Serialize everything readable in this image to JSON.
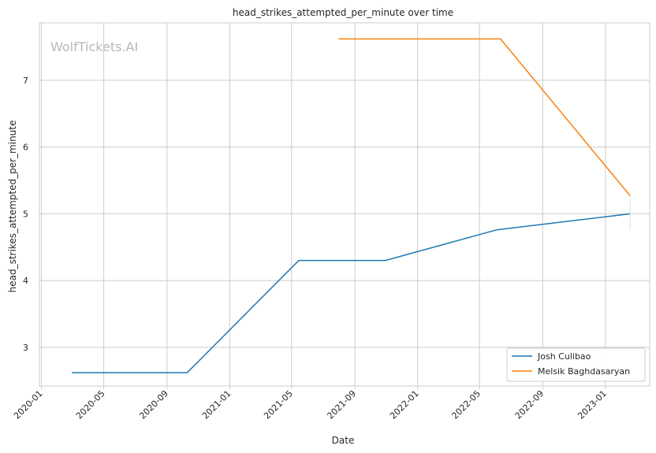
{
  "watermark": "WolfTickets.AI",
  "chart_data": {
    "type": "line",
    "title": "head_strikes_attempted_per_minute over time",
    "xlabel": "Date",
    "ylabel": "head_strikes_attempted_per_minute",
    "x_ticks": [
      "2020-01",
      "2020-05",
      "2020-09",
      "2021-01",
      "2021-05",
      "2021-09",
      "2022-01",
      "2022-05",
      "2022-09",
      "2023-01"
    ],
    "y_ticks": [
      3,
      4,
      5,
      6,
      7
    ],
    "xlim": [
      "2019-12-28",
      "2023-03-28"
    ],
    "ylim": [
      2.42,
      7.86
    ],
    "grid": true,
    "legend_position": "lower-right",
    "series": [
      {
        "name": "Josh Culibao",
        "color": "#1f77b4",
        "x": [
          "2020-02-29",
          "2020-10-10",
          "2021-05-15",
          "2021-10-30",
          "2022-06-04",
          "2023-02-18"
        ],
        "y": [
          2.62,
          2.62,
          4.3,
          4.3,
          4.76,
          5.0
        ]
      },
      {
        "name": "Melsik Baghdasaryan",
        "color": "#ff7f0e",
        "x": [
          "2021-07-31",
          "2022-06-11",
          "2023-02-18"
        ],
        "y": [
          7.62,
          7.62,
          5.27
        ]
      }
    ]
  }
}
